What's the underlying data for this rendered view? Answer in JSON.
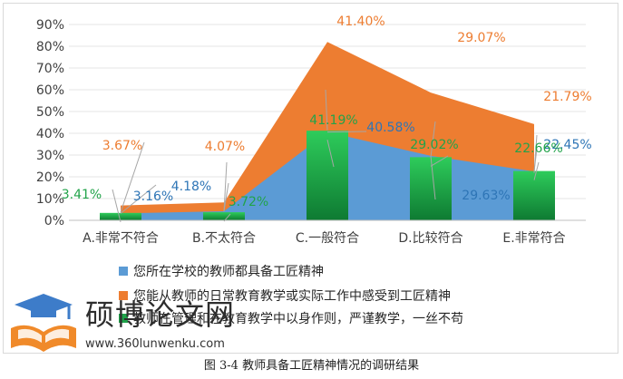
{
  "caption": "图 3-4 教师具备工匠精神情况的调研结果",
  "watermark": {
    "title": "硕博论文网",
    "url": "www.360lunwenku.com",
    "logo_icon": "graduation-cap-book-icon"
  },
  "colors": {
    "area_orange": "#ED7D31",
    "area_blue": "#5B9BD5",
    "bar_green": "#1FA34A",
    "label_orange": "#ED7D31",
    "label_blue": "#2E75B6",
    "label_green": "#22A34A",
    "axis_text": "#404040",
    "grid": "#e4e4e4"
  },
  "chart_data": {
    "type": "area",
    "categories": [
      "A.非常不符合",
      "B.不太符合",
      "C.一般符合",
      "D.比较符合",
      "E.非常符合"
    ],
    "ylim": [
      0,
      90
    ],
    "yticks": [
      "0%",
      "10%",
      "20%",
      "30%",
      "40%",
      "50%",
      "60%",
      "70%",
      "80%",
      "90%"
    ],
    "series": [
      {
        "name": "您所在学校的教师都具备工匠精神",
        "kind": "area",
        "color": "#5B9BD5",
        "values": [
          3.16,
          4.18,
          40.58,
          29.63,
          22.45
        ],
        "labels": [
          "3.16%",
          "4.18%",
          "40.58%",
          "29.63%",
          "22.45%"
        ]
      },
      {
        "name": "您能从教师的日常教育教学或实际工作中感受到工匠精神",
        "kind": "area",
        "color": "#ED7D31",
        "values": [
          3.67,
          4.07,
          41.4,
          29.07,
          21.79
        ],
        "labels": [
          "3.67%",
          "4.07%",
          "41.40%",
          "29.07%",
          "21.79%"
        ]
      },
      {
        "name": "教师在管理和在教育教学中以身作则，严谨教学，一丝不苟",
        "kind": "bar",
        "color": "#22A34A",
        "values": [
          3.41,
          3.72,
          41.19,
          29.02,
          22.66
        ],
        "labels": [
          "3.41%",
          "3.72%",
          "41.19%",
          "29.02%",
          "22.66%"
        ]
      }
    ],
    "grid": true,
    "legend": "bottom"
  }
}
